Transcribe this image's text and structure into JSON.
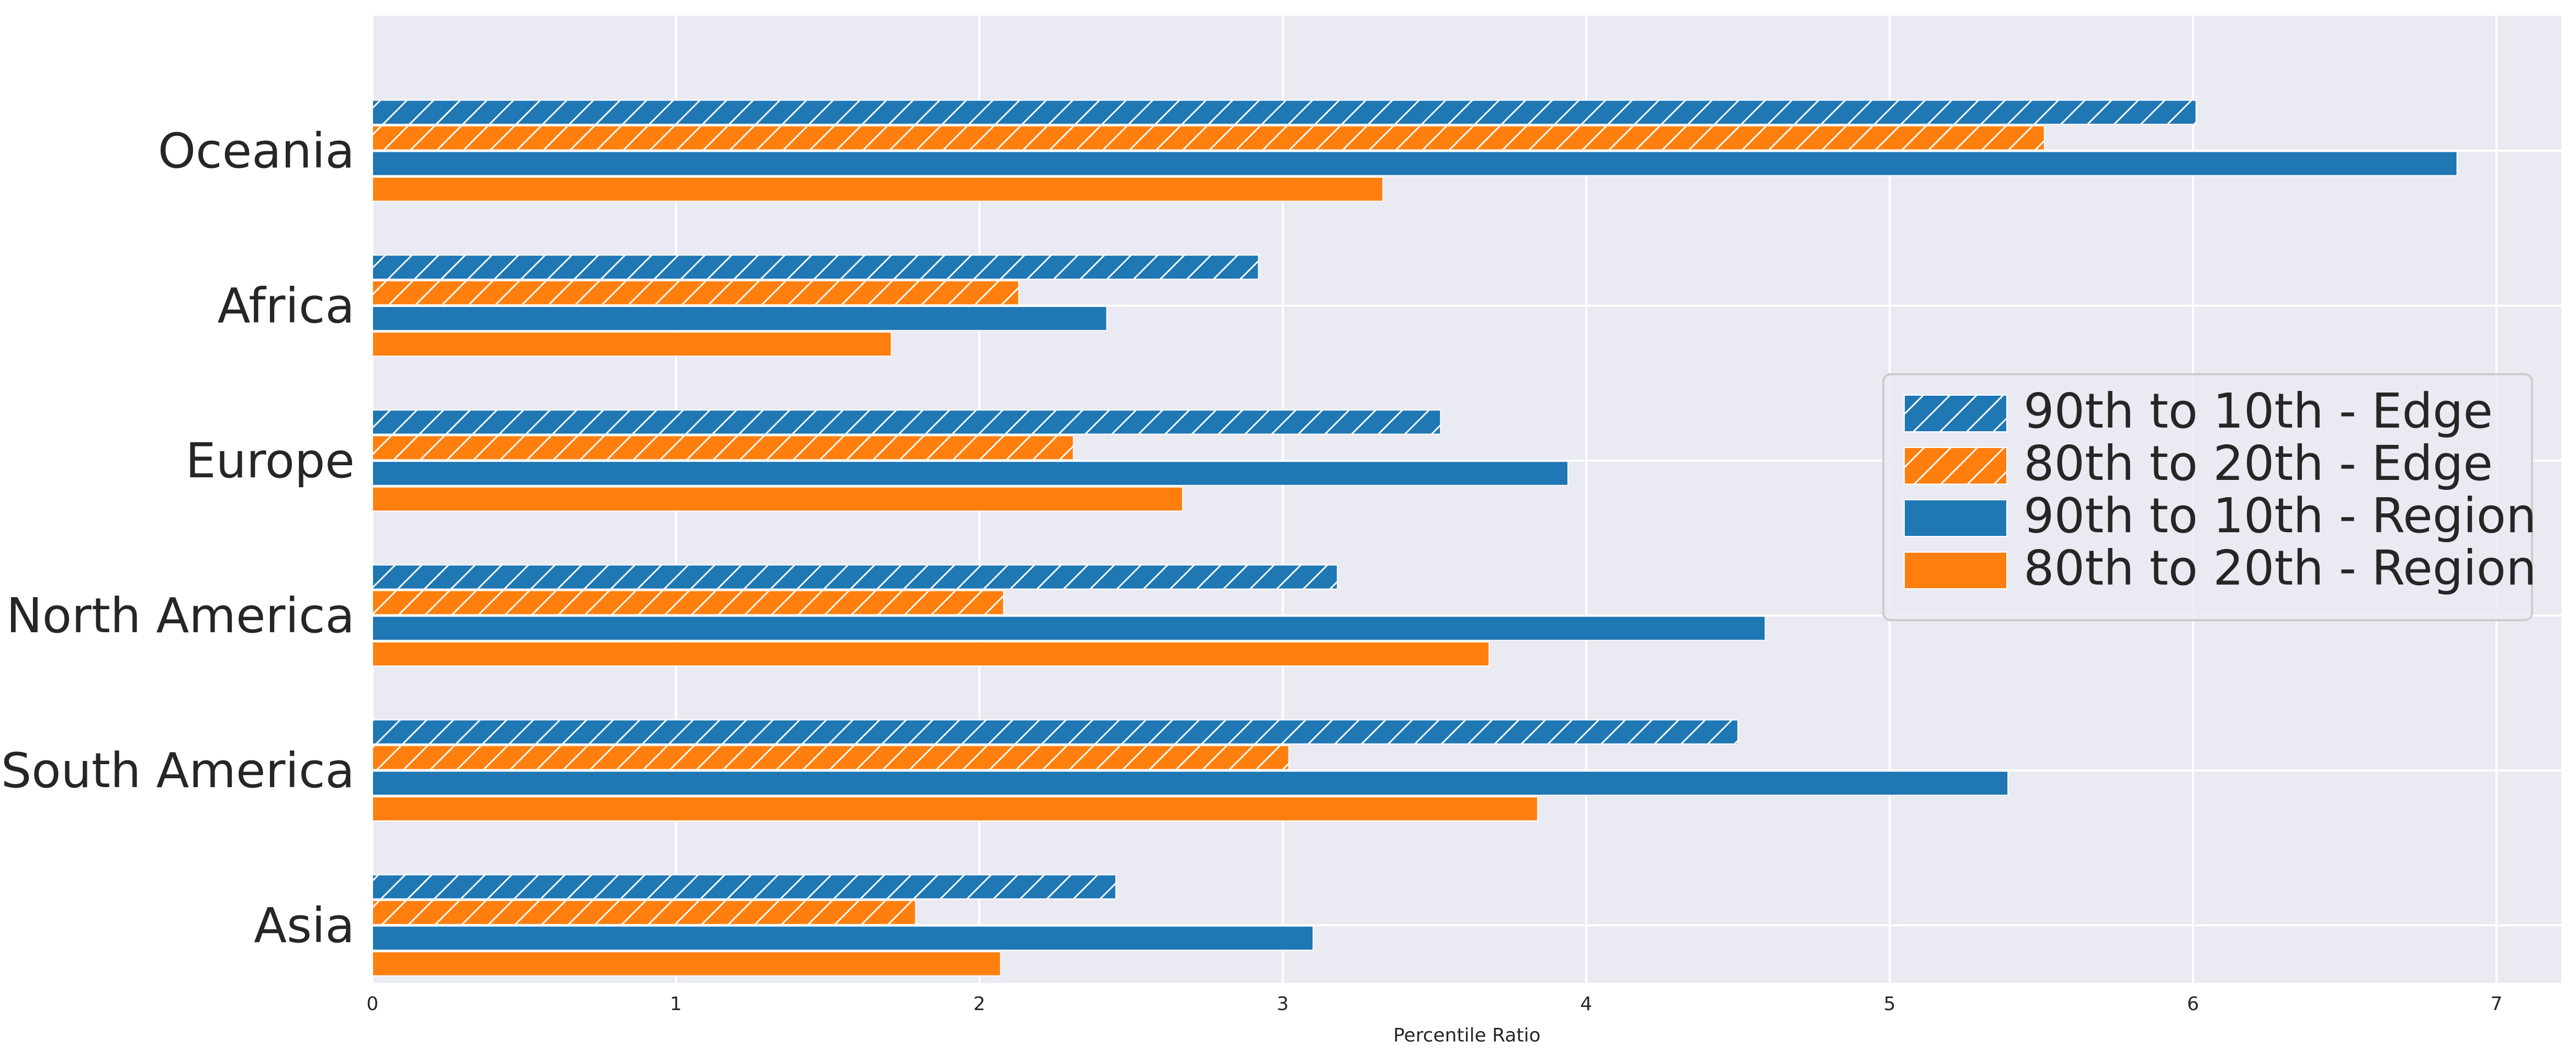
{
  "chart_data": {
    "type": "bar",
    "orientation": "horizontal",
    "title": "",
    "xlabel": "Percentile Ratio",
    "ylabel": "",
    "xlim": [
      0,
      7.2
    ],
    "xticks": [
      0,
      1,
      2,
      3,
      4,
      5,
      6,
      7
    ],
    "grid": true,
    "legend_position": "right",
    "categories": [
      "Asia",
      "South America",
      "North America",
      "Europe",
      "Africa",
      "Oceania"
    ],
    "series": [
      {
        "name": "90th to 10th - Edge",
        "color": "#1f77b4",
        "hatched": true,
        "values": [
          2.45,
          4.5,
          3.18,
          3.52,
          2.92,
          6.01
        ]
      },
      {
        "name": "80th to 20th - Edge",
        "color": "#ff7f0e",
        "hatched": true,
        "values": [
          1.79,
          3.02,
          2.08,
          2.31,
          2.13,
          5.51
        ]
      },
      {
        "name": "90th to 10th - Region",
        "color": "#1f77b4",
        "hatched": false,
        "values": [
          3.1,
          5.39,
          4.59,
          3.94,
          2.42,
          6.87
        ]
      },
      {
        "name": "80th to 20th - Region",
        "color": "#ff7f0e",
        "hatched": false,
        "values": [
          2.07,
          3.84,
          3.68,
          2.67,
          1.71,
          3.33
        ]
      }
    ]
  }
}
